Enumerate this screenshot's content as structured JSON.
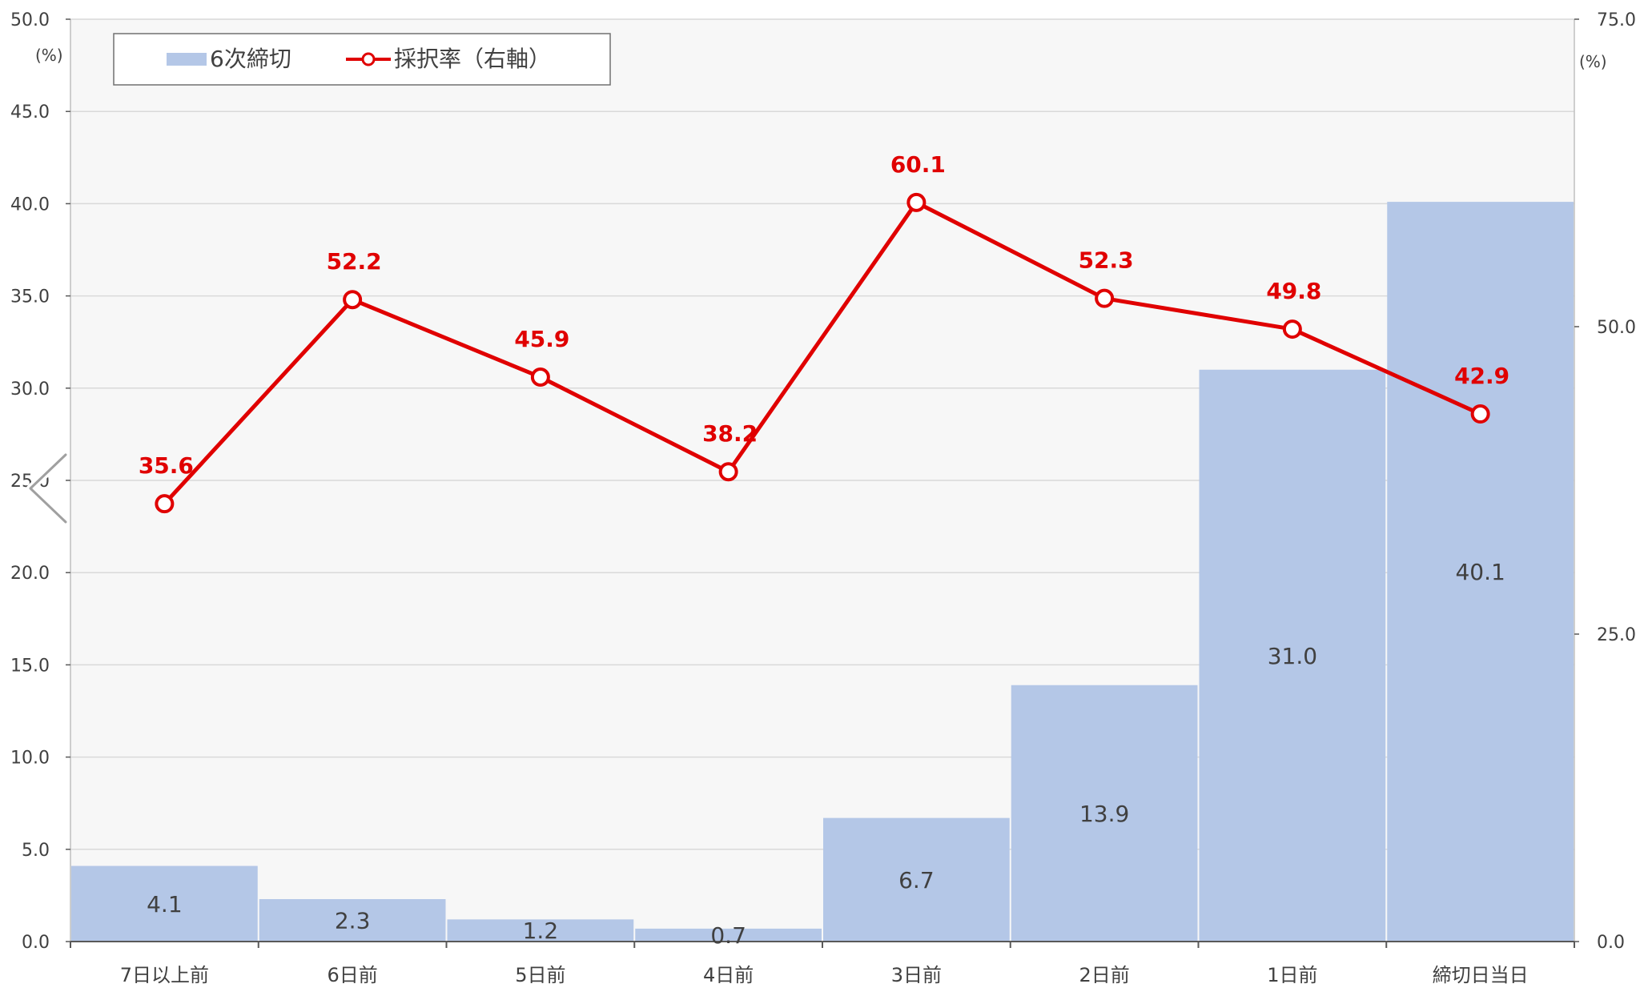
{
  "chart_data": {
    "type": "bar",
    "categories": [
      "7日以上前",
      "6日前",
      "5日前",
      "4日前",
      "3日前",
      "2日前",
      "1日前",
      "締切日当日"
    ],
    "series": [
      {
        "name": "6次締切",
        "type": "bar",
        "axis": "left",
        "values": [
          4.1,
          2.3,
          1.2,
          0.7,
          6.7,
          13.9,
          31.0,
          40.1
        ]
      },
      {
        "name": "採択率（右軸）",
        "type": "line",
        "axis": "right",
        "values": [
          35.6,
          52.2,
          45.9,
          38.2,
          60.1,
          52.3,
          49.8,
          42.9
        ]
      }
    ],
    "bar_labels": [
      "4.1",
      "2.3",
      "1.2",
      "0.7",
      "6.7",
      "13.9",
      "31.0",
      "40.1"
    ],
    "line_labels": [
      "35.6",
      "52.2",
      "45.9",
      "38.2",
      "60.1",
      "52.3",
      "49.8",
      "42.9"
    ],
    "left_axis": {
      "unit": "(%)",
      "ylim": [
        0,
        50
      ],
      "ticks": [
        "0.0",
        "5.0",
        "10.0",
        "15.0",
        "20.0",
        "25.0",
        "30.0",
        "35.0",
        "40.0",
        "45.0",
        "50.0"
      ]
    },
    "right_axis": {
      "unit": "(%)",
      "ylim": [
        0,
        75
      ],
      "ticks": [
        "0.0",
        "25.0",
        "50.0",
        "75.0"
      ]
    },
    "grid": true,
    "legend": "top-left",
    "colors": {
      "bar": "#b4c7e7",
      "line": "#e00000",
      "plot_bg": "#f7f7f7",
      "grid": "#d9d9d9"
    }
  },
  "nav": {
    "icon": "chevron-left-icon"
  }
}
